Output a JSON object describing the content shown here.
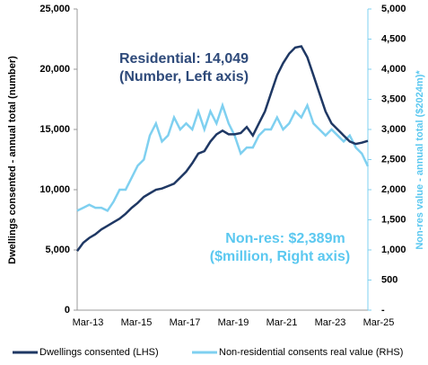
{
  "chart_data": {
    "type": "line",
    "ylabel": "Dwellings consented - annual total (number)",
    "y2label": "Non-res value - annual total ($2024m)*",
    "annotations": [
      {
        "text": "Residential: 14,049"
      },
      {
        "text": "(Number, Left axis)"
      },
      {
        "text": "Non-res: $2,389m"
      },
      {
        "text": "($million, Right axis)"
      }
    ],
    "categories": [
      "Mar-13",
      null,
      null,
      null,
      null,
      null,
      null,
      null,
      "Mar-15",
      null,
      null,
      null,
      null,
      null,
      null,
      null,
      "Mar-17",
      null,
      null,
      null,
      null,
      null,
      null,
      null,
      "Mar-19",
      null,
      null,
      null,
      null,
      null,
      null,
      null,
      "Mar-21",
      null,
      null,
      null,
      null,
      null,
      null,
      null,
      "Mar-23",
      null,
      null,
      null,
      null,
      null,
      null,
      null,
      "Mar-25"
    ],
    "series": [
      {
        "name": "Dwellings consented (LHS)",
        "color": "#1f3864",
        "values": [
          4900,
          5600,
          6000,
          6300,
          6700,
          7000,
          7300,
          7600,
          8000,
          8500,
          8900,
          9400,
          9700,
          10000,
          10100,
          10300,
          10500,
          11000,
          11500,
          12200,
          13000,
          13200,
          14000,
          14600,
          14900,
          14600,
          14600,
          14700,
          15200,
          14500,
          15500,
          16500,
          18000,
          19500,
          20500,
          21300,
          21800,
          21900,
          21000,
          19500,
          18000,
          16500,
          15500,
          15000,
          14500,
          14000,
          13800,
          13900,
          14049
        ]
      },
      {
        "name": "Non-residential consents real value (RHS)",
        "color": "#7fd0f0",
        "axis": "y2",
        "values": [
          1650,
          1700,
          1750,
          1700,
          1700,
          1650,
          1800,
          2000,
          2000,
          2200,
          2400,
          2500,
          2900,
          3100,
          2800,
          2900,
          3200,
          3000,
          3100,
          3000,
          3300,
          3000,
          3300,
          3100,
          3400,
          3100,
          2900,
          2600,
          2700,
          2700,
          2900,
          3000,
          3000,
          3200,
          3000,
          3100,
          3300,
          3200,
          3400,
          3100,
          3000,
          2900,
          3000,
          2900,
          2800,
          2900,
          2700,
          2600,
          2389
        ]
      }
    ],
    "ylim": [
      0,
      25000
    ],
    "yticks": [
      0,
      {
        "value": 5000,
        "label": "5,000"
      },
      {
        "value": 10000,
        "label": "10,000"
      },
      {
        "value": 15000,
        "label": "15,000"
      },
      {
        "value": 20000,
        "label": "20,000"
      },
      {
        "value": 25000,
        "label": "25,000"
      }
    ],
    "y2lim": [
      0,
      5000
    ],
    "y2ticks": [
      {
        "value": 0,
        "label": "-"
      },
      500,
      {
        "value": 1000,
        "label": "1,000"
      },
      {
        "value": 1500,
        "label": "1,500"
      },
      {
        "value": 2000,
        "label": "2,000"
      },
      {
        "value": 2500,
        "label": "2,500"
      },
      {
        "value": 3000,
        "label": "3,000"
      },
      {
        "value": 3500,
        "label": "3,500"
      },
      {
        "value": 4000,
        "label": "4,000"
      },
      {
        "value": 4500,
        "label": "4,500"
      },
      {
        "value": 5000,
        "label": "5,000"
      }
    ],
    "legend": "bottom"
  }
}
